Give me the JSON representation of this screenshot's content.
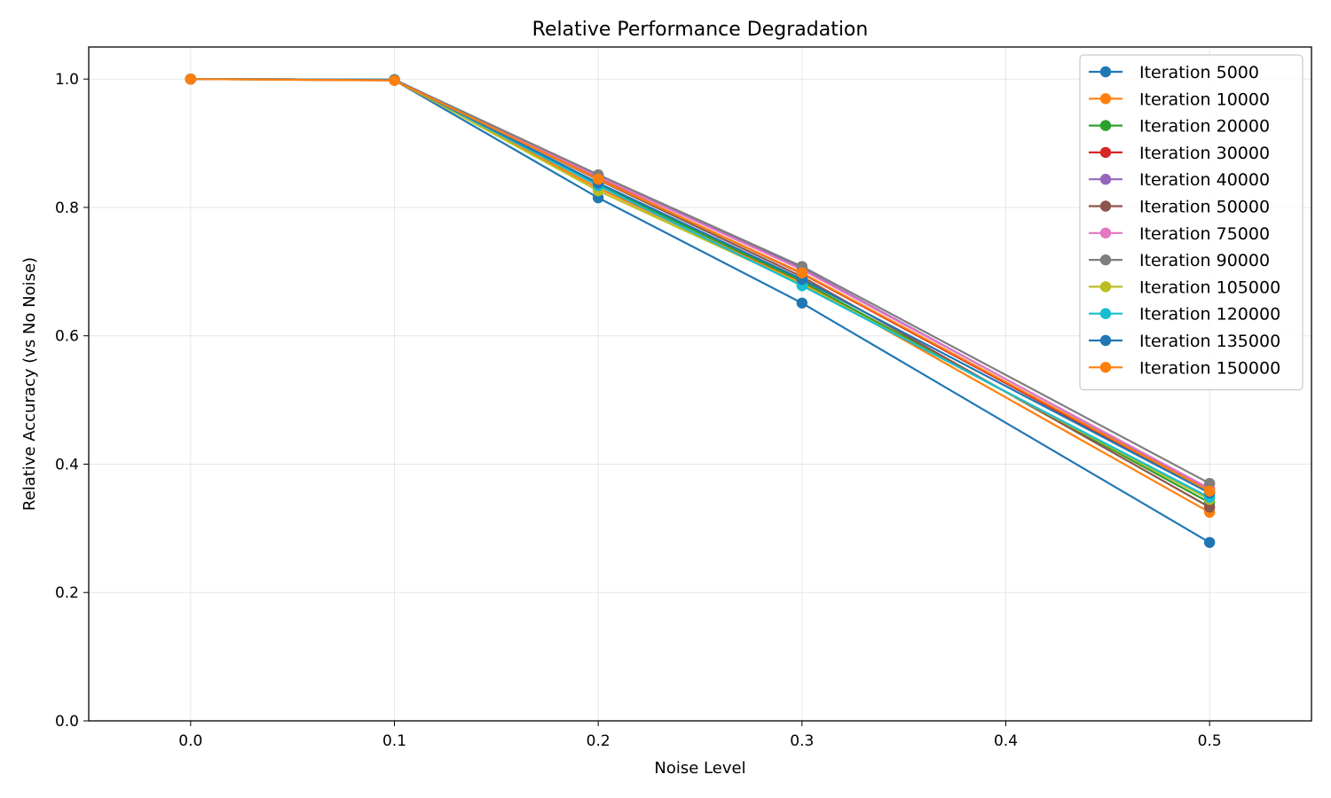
{
  "chart_data": {
    "type": "line",
    "title": "Relative Performance Degradation",
    "xlabel": "Noise Level",
    "ylabel": "Relative Accuracy (vs No Noise)",
    "xlim": [
      -0.05,
      0.55
    ],
    "ylim": [
      0.0,
      1.05
    ],
    "x_ticks": [
      "0.0",
      "0.1",
      "0.2",
      "0.3",
      "0.4",
      "0.5"
    ],
    "x_tick_values": [
      0.0,
      0.1,
      0.2,
      0.3,
      0.4,
      0.5
    ],
    "y_ticks": [
      "0.0",
      "0.2",
      "0.4",
      "0.6",
      "0.8",
      "1.0"
    ],
    "y_tick_values": [
      0.0,
      0.2,
      0.4,
      0.6,
      0.8,
      1.0
    ],
    "grid": true,
    "legend_position": "top-right",
    "x": [
      0.0,
      0.1,
      0.2,
      0.3,
      0.4,
      0.5
    ],
    "series": [
      {
        "name": "Iteration 5000",
        "color": "#1f77b4",
        "values": [
          1.0,
          0.998,
          0.815,
          0.651,
          null,
          0.278
        ]
      },
      {
        "name": "Iteration 10000",
        "color": "#ff7f0e",
        "values": [
          1.0,
          0.998,
          0.83,
          0.683,
          null,
          0.325
        ]
      },
      {
        "name": "Iteration 20000",
        "color": "#2ca02c",
        "values": [
          1.0,
          0.999,
          0.835,
          0.685,
          null,
          0.34
        ]
      },
      {
        "name": "Iteration 30000",
        "color": "#d62728",
        "values": [
          1.0,
          0.999,
          0.845,
          0.697,
          null,
          0.355
        ]
      },
      {
        "name": "Iteration 40000",
        "color": "#9467bd",
        "values": [
          1.0,
          0.999,
          0.85,
          0.705,
          null,
          0.36
        ]
      },
      {
        "name": "Iteration 50000",
        "color": "#8c564b",
        "values": [
          1.0,
          0.999,
          0.843,
          0.692,
          null,
          0.333
        ]
      },
      {
        "name": "Iteration 75000",
        "color": "#e377c2",
        "values": [
          1.0,
          0.999,
          0.848,
          0.703,
          null,
          0.362
        ]
      },
      {
        "name": "Iteration 90000",
        "color": "#7f7f7f",
        "values": [
          1.0,
          0.999,
          0.851,
          0.708,
          null,
          0.37
        ]
      },
      {
        "name": "Iteration 105000",
        "color": "#bcbd22",
        "values": [
          1.0,
          0.999,
          0.826,
          0.68,
          null,
          0.345
        ]
      },
      {
        "name": "Iteration 120000",
        "color": "#17becf",
        "values": [
          1.0,
          0.999,
          0.834,
          0.678,
          null,
          0.348
        ]
      },
      {
        "name": "Iteration 135000",
        "color": "#1f77b4",
        "values": [
          1.0,
          0.999,
          0.838,
          0.688,
          null,
          0.355
        ]
      },
      {
        "name": "Iteration 150000",
        "color": "#ff7f0e",
        "values": [
          1.0,
          0.998,
          0.844,
          0.698,
          null,
          0.358
        ]
      }
    ]
  }
}
